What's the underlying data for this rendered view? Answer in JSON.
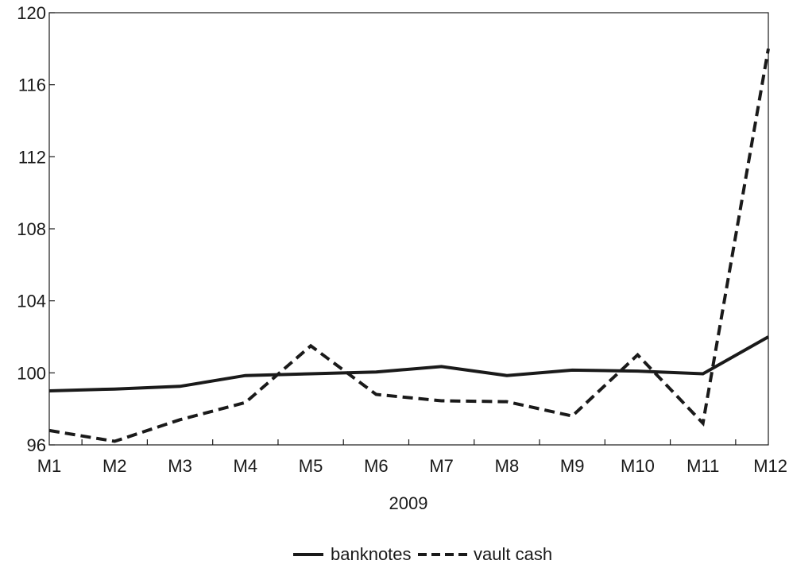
{
  "chart_data": {
    "type": "line",
    "title": "",
    "xlabel": "2009",
    "ylabel": "",
    "categories": [
      "M1",
      "M2",
      "M3",
      "M4",
      "M5",
      "M6",
      "M7",
      "M8",
      "M9",
      "M10",
      "M11",
      "M12"
    ],
    "ylim": [
      96,
      120
    ],
    "yticks": [
      96,
      100,
      104,
      108,
      112,
      116,
      120
    ],
    "grid": false,
    "legend_position": "bottom-center",
    "series": [
      {
        "name": "banknotes",
        "style": "solid",
        "color": "#1a1a1a",
        "values": [
          99.0,
          99.1,
          99.25,
          99.85,
          99.95,
          100.05,
          100.35,
          99.85,
          100.15,
          100.1,
          99.95,
          102.0
        ]
      },
      {
        "name": "vault cash",
        "style": "dashed",
        "color": "#1a1a1a",
        "values": [
          96.8,
          96.2,
          97.4,
          98.35,
          101.5,
          98.8,
          98.45,
          98.4,
          97.6,
          101.0,
          97.2,
          118.0
        ]
      }
    ]
  }
}
